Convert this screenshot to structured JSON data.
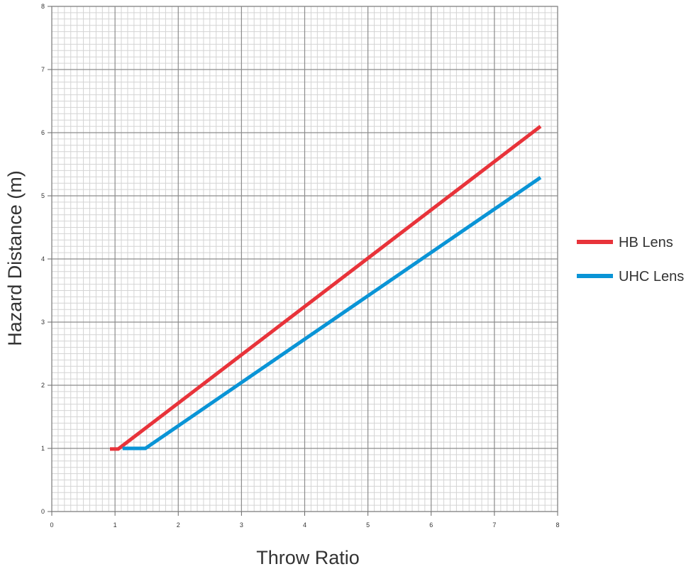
{
  "chart_data": {
    "type": "line",
    "title": "",
    "xlabel": "Throw Ratio",
    "ylabel": "Hazard Distance (m)",
    "xlim": [
      0,
      8
    ],
    "ylim": [
      0,
      8
    ],
    "x_ticks": [
      "0",
      "1",
      "2",
      "3",
      "4",
      "5",
      "6",
      "7",
      "8"
    ],
    "y_ticks": [
      "0",
      "1",
      "2",
      "3",
      "4",
      "5",
      "6",
      "7",
      "8"
    ],
    "grid": true,
    "legend_position": "right",
    "series": [
      {
        "name": "HB Lens",
        "color": "#e8333a",
        "points": [
          [
            0.92,
            0.99
          ],
          [
            1.05,
            0.99
          ],
          [
            7.73,
            6.1
          ]
        ]
      },
      {
        "name": "UHC Lens",
        "color": "#0a94d6",
        "points": [
          [
            1.12,
            1.0
          ],
          [
            1.48,
            1.0
          ],
          [
            7.73,
            5.29
          ]
        ]
      }
    ]
  }
}
